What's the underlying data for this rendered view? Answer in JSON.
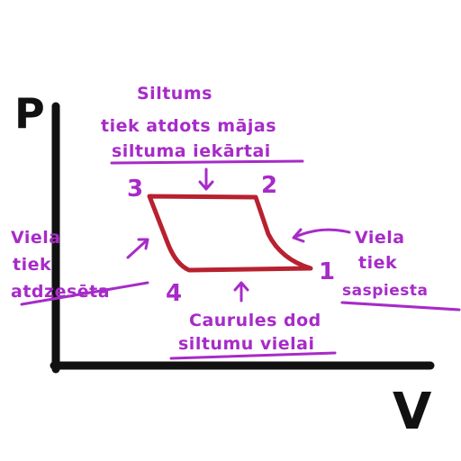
{
  "axes": {
    "y_label": "P",
    "x_label": "V"
  },
  "points": {
    "p1": "1",
    "p2": "2",
    "p3": "3",
    "p4": "4"
  },
  "annotations": {
    "top": [
      "Siltums",
      "tiek atdots mājas",
      "siltuma iekārtai"
    ],
    "left": [
      "Viela",
      "tiek",
      "atdzesēta"
    ],
    "right": [
      "Viela",
      "tiek",
      "saspiesta"
    ],
    "bottom": [
      "Caurules dod",
      "siltumu vielai"
    ]
  },
  "colors": {
    "cycle": "#b8212f",
    "ink": "#a72bc8",
    "axis": "#111111"
  }
}
